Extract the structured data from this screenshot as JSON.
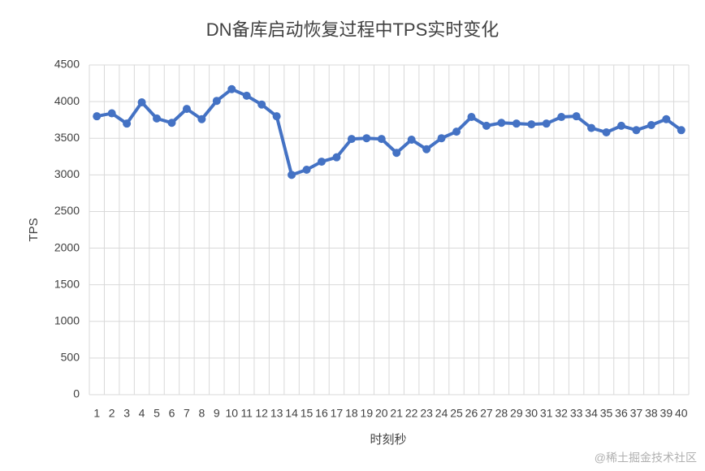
{
  "chart_data": {
    "type": "line",
    "title": "DN备库启动恢复过程中TPS实时变化",
    "x_label": "时刻秒",
    "y_label": "TPS",
    "watermark": "@稀土掘金技术社区",
    "categories": [
      "1",
      "2",
      "3",
      "4",
      "5",
      "6",
      "7",
      "8",
      "9",
      "10",
      "11",
      "12",
      "13",
      "14",
      "15",
      "16",
      "17",
      "18",
      "19",
      "20",
      "21",
      "22",
      "23",
      "24",
      "25",
      "26",
      "27",
      "28",
      "29",
      "30",
      "31",
      "32",
      "33",
      "34",
      "35",
      "36",
      "37",
      "38",
      "39",
      "40"
    ],
    "values": [
      3800,
      3840,
      3700,
      3990,
      3770,
      3710,
      3900,
      3760,
      4010,
      4170,
      4080,
      3960,
      3800,
      3000,
      3070,
      3180,
      3240,
      3490,
      3500,
      3490,
      3300,
      3480,
      3350,
      3500,
      3590,
      3790,
      3670,
      3710,
      3700,
      3690,
      3700,
      3790,
      3800,
      3640,
      3580,
      3670,
      3610,
      3680,
      3760,
      3610
    ],
    "color": "#4472c4",
    "ylim": [
      0,
      4500
    ],
    "yticks": [
      0,
      500,
      1000,
      1500,
      2000,
      2500,
      3000,
      3500,
      4000,
      4500
    ],
    "grid": true
  }
}
